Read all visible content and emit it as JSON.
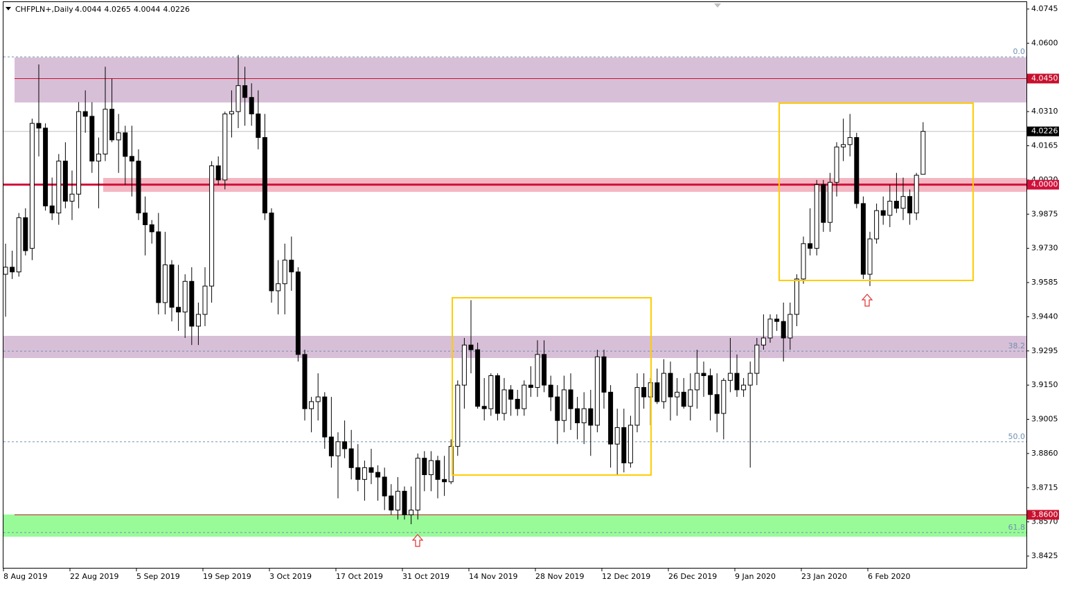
{
  "chart_data": {
    "type": "candlestick",
    "title": "CHFPLN+,Daily",
    "ylim": [
      3.8425,
      4.0745
    ],
    "yticks": [
      {
        "value": 4.0745,
        "label": "4.0745"
      },
      {
        "value": 4.06,
        "label": "4.0600"
      },
      {
        "value": 4.031,
        "label": "4.0310"
      },
      {
        "value": 4.0165,
        "label": "4.0165"
      },
      {
        "value": 4.002,
        "label": "4.0020"
      },
      {
        "value": 3.9875,
        "label": "3.9875"
      },
      {
        "value": 3.973,
        "label": "3.9730"
      },
      {
        "value": 3.9585,
        "label": "3.9585"
      },
      {
        "value": 3.944,
        "label": "3.9440"
      },
      {
        "value": 3.9295,
        "label": "3.9295"
      },
      {
        "value": 3.915,
        "label": "3.9150"
      },
      {
        "value": 3.9005,
        "label": "3.9005"
      },
      {
        "value": 3.886,
        "label": "3.8860"
      },
      {
        "value": 3.8715,
        "label": "3.8715"
      },
      {
        "value": 3.857,
        "label": "3.8570"
      },
      {
        "value": 3.8425,
        "label": "3.8425"
      }
    ],
    "x_labels": [
      "8 Aug 2019",
      "22 Aug 2019",
      "5 Sep 2019",
      "19 Sep 2019",
      "3 Oct 2019",
      "17 Oct 2019",
      "31 Oct 2019",
      "14 Nov 2019",
      "28 Nov 2019",
      "12 Dec 2019",
      "26 Dec 2019",
      "9 Jan 2020",
      "23 Jan 2020",
      "6 Feb 2020"
    ],
    "levels": [
      {
        "price": 4.045,
        "label": "4.0450",
        "color": "#c8102e",
        "width": 1
      },
      {
        "price": 4.0,
        "label": "4.0000",
        "color": "#d0103a",
        "width": 3
      },
      {
        "price": 3.86,
        "label": "3.8600",
        "color": "#c8102e",
        "width": 1
      }
    ],
    "fib_levels": [
      {
        "price": 4.0542,
        "label": "0.0"
      },
      {
        "price": 3.9294,
        "label": "38.2"
      },
      {
        "price": 3.891,
        "label": "50.0"
      },
      {
        "price": 3.8525,
        "label": "61.8"
      }
    ],
    "up_color": "#ffffff",
    "down_color": "#000000",
    "candles": [
      [
        3.962,
        3.975,
        3.944,
        3.965
      ],
      [
        3.965,
        3.972,
        3.96,
        3.963
      ],
      [
        3.963,
        3.988,
        3.961,
        3.986
      ],
      [
        3.986,
        3.99,
        3.97,
        3.972
      ],
      [
        3.973,
        4.028,
        3.968,
        4.026
      ],
      [
        4.026,
        4.051,
        4.012,
        4.024
      ],
      [
        4.024,
        4.026,
        3.989,
        3.991
      ],
      [
        3.991,
        4.003,
        3.985,
        3.988
      ],
      [
        3.988,
        4.013,
        3.983,
        4.01
      ],
      [
        4.01,
        4.018,
        3.99,
        3.993
      ],
      [
        3.993,
        4.006,
        3.985,
        3.996
      ],
      [
        3.996,
        4.035,
        3.99,
        4.031
      ],
      [
        4.031,
        4.04,
        4.022,
        4.029
      ],
      [
        4.029,
        4.035,
        4.005,
        4.01
      ],
      [
        4.01,
        4.02,
        3.99,
        4.013
      ],
      [
        4.013,
        4.05,
        4.01,
        4.032
      ],
      [
        4.032,
        4.045,
        4.018,
        4.019
      ],
      [
        4.019,
        4.03,
        4.005,
        4.022
      ],
      [
        4.022,
        4.025,
        4.0,
        4.012
      ],
      [
        4.012,
        4.025,
        3.995,
        4.01
      ],
      [
        4.01,
        4.015,
        3.985,
        3.988
      ],
      [
        3.988,
        3.995,
        3.97,
        3.983
      ],
      [
        3.983,
        3.985,
        3.975,
        3.98
      ],
      [
        3.98,
        3.988,
        3.945,
        3.95
      ],
      [
        3.95,
        3.98,
        3.945,
        3.966
      ],
      [
        3.966,
        3.968,
        3.942,
        3.948
      ],
      [
        3.948,
        3.966,
        3.938,
        3.946
      ],
      [
        3.946,
        3.962,
        3.935,
        3.959
      ],
      [
        3.959,
        3.965,
        3.932,
        3.94
      ],
      [
        3.94,
        3.95,
        3.932,
        3.945
      ],
      [
        3.945,
        3.965,
        3.94,
        3.957
      ],
      [
        3.957,
        4.01,
        3.95,
        4.008
      ],
      [
        4.008,
        4.012,
        4.0,
        4.002
      ],
      [
        4.002,
        4.031,
        3.998,
        4.03
      ],
      [
        4.03,
        4.04,
        4.02,
        4.031
      ],
      [
        4.031,
        4.055,
        4.024,
        4.042
      ],
      [
        4.042,
        4.05,
        4.025,
        4.037
      ],
      [
        4.037,
        4.043,
        4.025,
        4.03
      ],
      [
        4.03,
        4.04,
        4.015,
        4.02
      ],
      [
        4.02,
        4.03,
        3.985,
        3.988
      ],
      [
        3.988,
        3.99,
        3.95,
        3.955
      ],
      [
        3.955,
        3.968,
        3.945,
        3.958
      ],
      [
        3.958,
        3.975,
        3.945,
        3.968
      ],
      [
        3.968,
        3.978,
        3.955,
        3.963
      ],
      [
        3.963,
        3.965,
        3.925,
        3.928
      ],
      [
        3.928,
        3.93,
        3.9,
        3.905
      ],
      [
        3.905,
        3.91,
        3.895,
        3.908
      ],
      [
        3.908,
        3.92,
        3.9,
        3.91
      ],
      [
        3.91,
        3.912,
        3.888,
        3.893
      ],
      [
        3.893,
        3.91,
        3.88,
        3.885
      ],
      [
        3.885,
        3.895,
        3.867,
        3.891
      ],
      [
        3.891,
        3.9,
        3.884,
        3.888
      ],
      [
        3.888,
        3.896,
        3.875,
        3.88
      ],
      [
        3.88,
        3.89,
        3.87,
        3.875
      ],
      [
        3.875,
        3.883,
        3.866,
        3.88
      ],
      [
        3.88,
        3.888,
        3.873,
        3.878
      ],
      [
        3.878,
        3.881,
        3.866,
        3.876
      ],
      [
        3.876,
        3.88,
        3.862,
        3.868
      ],
      [
        3.868,
        3.873,
        3.86,
        3.862
      ],
      [
        3.862,
        3.876,
        3.858,
        3.87
      ],
      [
        3.87,
        3.872,
        3.858,
        3.86
      ],
      [
        3.86,
        3.872,
        3.856,
        3.862
      ],
      [
        3.862,
        3.886,
        3.858,
        3.884
      ],
      [
        3.884,
        3.887,
        3.87,
        3.877
      ],
      [
        3.877,
        3.887,
        3.87,
        3.883
      ],
      [
        3.883,
        3.885,
        3.867,
        3.875
      ],
      [
        3.875,
        3.885,
        3.868,
        3.874
      ],
      [
        3.874,
        3.892,
        3.873,
        3.889
      ],
      [
        3.889,
        3.917,
        3.885,
        3.915
      ],
      [
        3.915,
        3.935,
        3.905,
        3.932
      ],
      [
        3.932,
        3.951,
        3.92,
        3.93
      ],
      [
        3.93,
        3.933,
        3.905,
        3.906
      ],
      [
        3.906,
        3.918,
        3.9,
        3.905
      ],
      [
        3.905,
        3.92,
        3.902,
        3.919
      ],
      [
        3.919,
        3.92,
        3.9,
        3.903
      ],
      [
        3.903,
        3.918,
        3.9,
        3.913
      ],
      [
        3.913,
        3.915,
        3.902,
        3.909
      ],
      [
        3.909,
        3.913,
        3.902,
        3.905
      ],
      [
        3.905,
        3.917,
        3.902,
        3.915
      ],
      [
        3.915,
        3.923,
        3.91,
        3.914
      ],
      [
        3.914,
        3.934,
        3.91,
        3.928
      ],
      [
        3.928,
        3.934,
        3.912,
        3.915
      ],
      [
        3.915,
        3.919,
        3.904,
        3.91
      ],
      [
        3.91,
        3.915,
        3.89,
        3.9
      ],
      [
        3.9,
        3.919,
        3.895,
        3.913
      ],
      [
        3.913,
        3.92,
        3.896,
        3.905
      ],
      [
        3.905,
        3.91,
        3.892,
        3.899
      ],
      [
        3.899,
        3.912,
        3.89,
        3.905
      ],
      [
        3.905,
        3.913,
        3.885,
        3.898
      ],
      [
        3.898,
        3.93,
        3.895,
        3.927
      ],
      [
        3.927,
        3.93,
        3.905,
        3.912
      ],
      [
        3.912,
        3.915,
        3.88,
        3.89
      ],
      [
        3.89,
        3.905,
        3.877,
        3.897
      ],
      [
        3.897,
        3.905,
        3.878,
        3.882
      ],
      [
        3.882,
        3.902,
        3.88,
        3.898
      ],
      [
        3.898,
        3.92,
        3.895,
        3.914
      ],
      [
        3.914,
        3.92,
        3.905,
        3.91
      ],
      [
        3.91,
        3.918,
        3.898,
        3.916
      ],
      [
        3.916,
        3.922,
        3.907,
        3.908
      ],
      [
        3.908,
        3.926,
        3.905,
        3.92
      ],
      [
        3.92,
        3.925,
        3.9,
        3.91
      ],
      [
        3.91,
        3.918,
        3.902,
        3.912
      ],
      [
        3.912,
        3.918,
        3.905,
        3.906
      ],
      [
        3.906,
        3.92,
        3.9,
        3.913
      ],
      [
        3.913,
        3.93,
        3.905,
        3.92
      ],
      [
        3.92,
        3.925,
        3.91,
        3.919
      ],
      [
        3.919,
        3.922,
        3.9,
        3.911
      ],
      [
        3.911,
        3.92,
        3.895,
        3.903
      ],
      [
        3.903,
        3.918,
        3.892,
        3.917
      ],
      [
        3.917,
        3.935,
        3.912,
        3.92
      ],
      [
        3.92,
        3.928,
        3.91,
        3.913
      ],
      [
        3.913,
        3.918,
        3.91,
        3.915
      ],
      [
        3.915,
        3.925,
        3.88,
        3.92
      ],
      [
        3.92,
        3.935,
        3.915,
        3.932
      ],
      [
        3.932,
        3.945,
        3.93,
        3.935
      ],
      [
        3.935,
        3.945,
        3.933,
        3.943
      ],
      [
        3.943,
        3.945,
        3.938,
        3.942
      ],
      [
        3.942,
        3.95,
        3.925,
        3.935
      ],
      [
        3.935,
        3.95,
        3.93,
        3.945
      ],
      [
        3.945,
        3.962,
        3.94,
        3.96
      ],
      [
        3.96,
        3.978,
        3.958,
        3.975
      ],
      [
        3.975,
        3.99,
        3.97,
        3.973
      ],
      [
        3.973,
        4.002,
        3.97,
        4.0
      ],
      [
        4.0,
        4.002,
        3.98,
        3.984
      ],
      [
        3.984,
        4.005,
        3.98,
        4.001
      ],
      [
        4.001,
        4.018,
        3.995,
        4.016
      ],
      [
        4.016,
        4.028,
        4.01,
        4.017
      ],
      [
        4.017,
        4.03,
        4.012,
        4.02
      ],
      [
        4.02,
        4.022,
        3.99,
        3.992
      ],
      [
        3.992,
        3.995,
        3.96,
        3.962
      ],
      [
        3.962,
        3.98,
        3.957,
        3.977
      ],
      [
        3.977,
        3.992,
        3.975,
        3.989
      ],
      [
        3.989,
        3.995,
        3.983,
        3.987
      ],
      [
        3.987,
        4.0,
        3.982,
        3.993
      ],
      [
        3.993,
        4.005,
        3.988,
        3.99
      ],
      [
        3.99,
        4.003,
        3.985,
        3.995
      ],
      [
        3.995,
        3.998,
        3.983,
        3.988
      ],
      [
        3.988,
        4.005,
        3.985,
        4.004
      ],
      [
        4.0044,
        4.0265,
        4.0044,
        4.0226
      ]
    ]
  }
}
